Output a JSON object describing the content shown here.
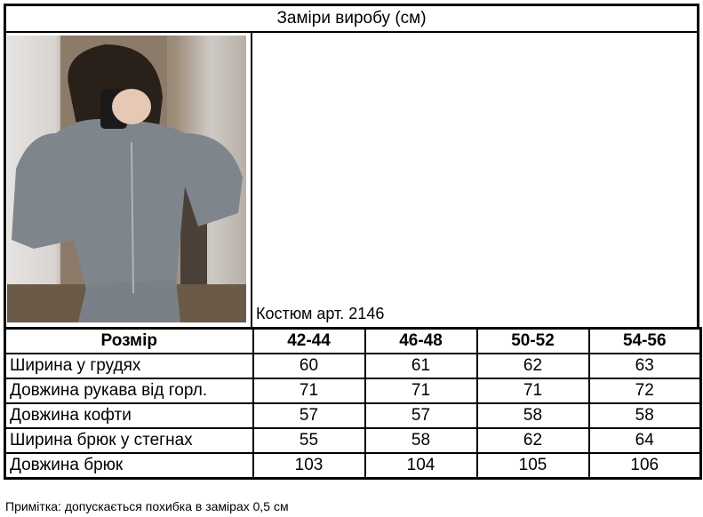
{
  "title": "Заміри виробу (см)",
  "caption": "Костюм арт. 2146",
  "table": {
    "header": [
      "Розмір",
      "42-44",
      "46-48",
      "50-52",
      "54-56"
    ],
    "rows": [
      {
        "label": "Ширина у грудях",
        "values": [
          "60",
          "61",
          "62",
          "63"
        ]
      },
      {
        "label": "Довжина рукава від горл.",
        "values": [
          "71",
          "71",
          "71",
          "72"
        ]
      },
      {
        "label": "Довжина кофти",
        "values": [
          "57",
          "57",
          "58",
          "58"
        ]
      },
      {
        "label": "Ширина брюк у стегнах",
        "values": [
          "55",
          "58",
          "62",
          "64"
        ]
      },
      {
        "label": "Довжина брюк",
        "values": [
          "103",
          "104",
          "105",
          "106"
        ]
      }
    ]
  },
  "note": "Примітка: допускається похибка в замірах 0,5 см"
}
